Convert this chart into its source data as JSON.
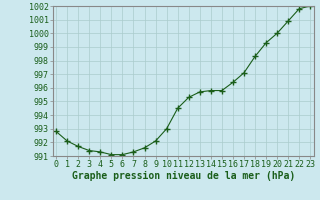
{
  "hours": [
    0,
    1,
    2,
    3,
    4,
    5,
    6,
    7,
    8,
    9,
    10,
    11,
    12,
    13,
    14,
    15,
    16,
    17,
    18,
    19,
    20,
    21,
    22,
    23
  ],
  "pressure": [
    992.8,
    992.1,
    991.7,
    991.4,
    991.3,
    991.1,
    991.1,
    991.3,
    991.6,
    992.1,
    993.0,
    994.5,
    995.3,
    995.7,
    995.8,
    995.8,
    996.4,
    997.1,
    998.3,
    999.3,
    1000.0,
    1000.9,
    1001.8,
    1002.0
  ],
  "line_color": "#1a5e1a",
  "marker_color": "#1a5e1a",
  "marker_style": "+",
  "marker_size": 4,
  "marker_linewidth": 1.0,
  "background_color": "#cce8ee",
  "grid_color": "#aacccc",
  "xlabel": "Graphe pression niveau de la mer (hPa)",
  "xlabel_fontsize": 7,
  "tick_fontsize": 6,
  "tick_color": "#1a5e1a",
  "ylim": [
    991,
    1002
  ],
  "yticks": [
    991,
    992,
    993,
    994,
    995,
    996,
    997,
    998,
    999,
    1000,
    1001,
    1002
  ],
  "xticks": [
    0,
    1,
    2,
    3,
    4,
    5,
    6,
    7,
    8,
    9,
    10,
    11,
    12,
    13,
    14,
    15,
    16,
    17,
    18,
    19,
    20,
    21,
    22,
    23
  ],
  "line_width": 0.8,
  "spine_color": "#888888"
}
